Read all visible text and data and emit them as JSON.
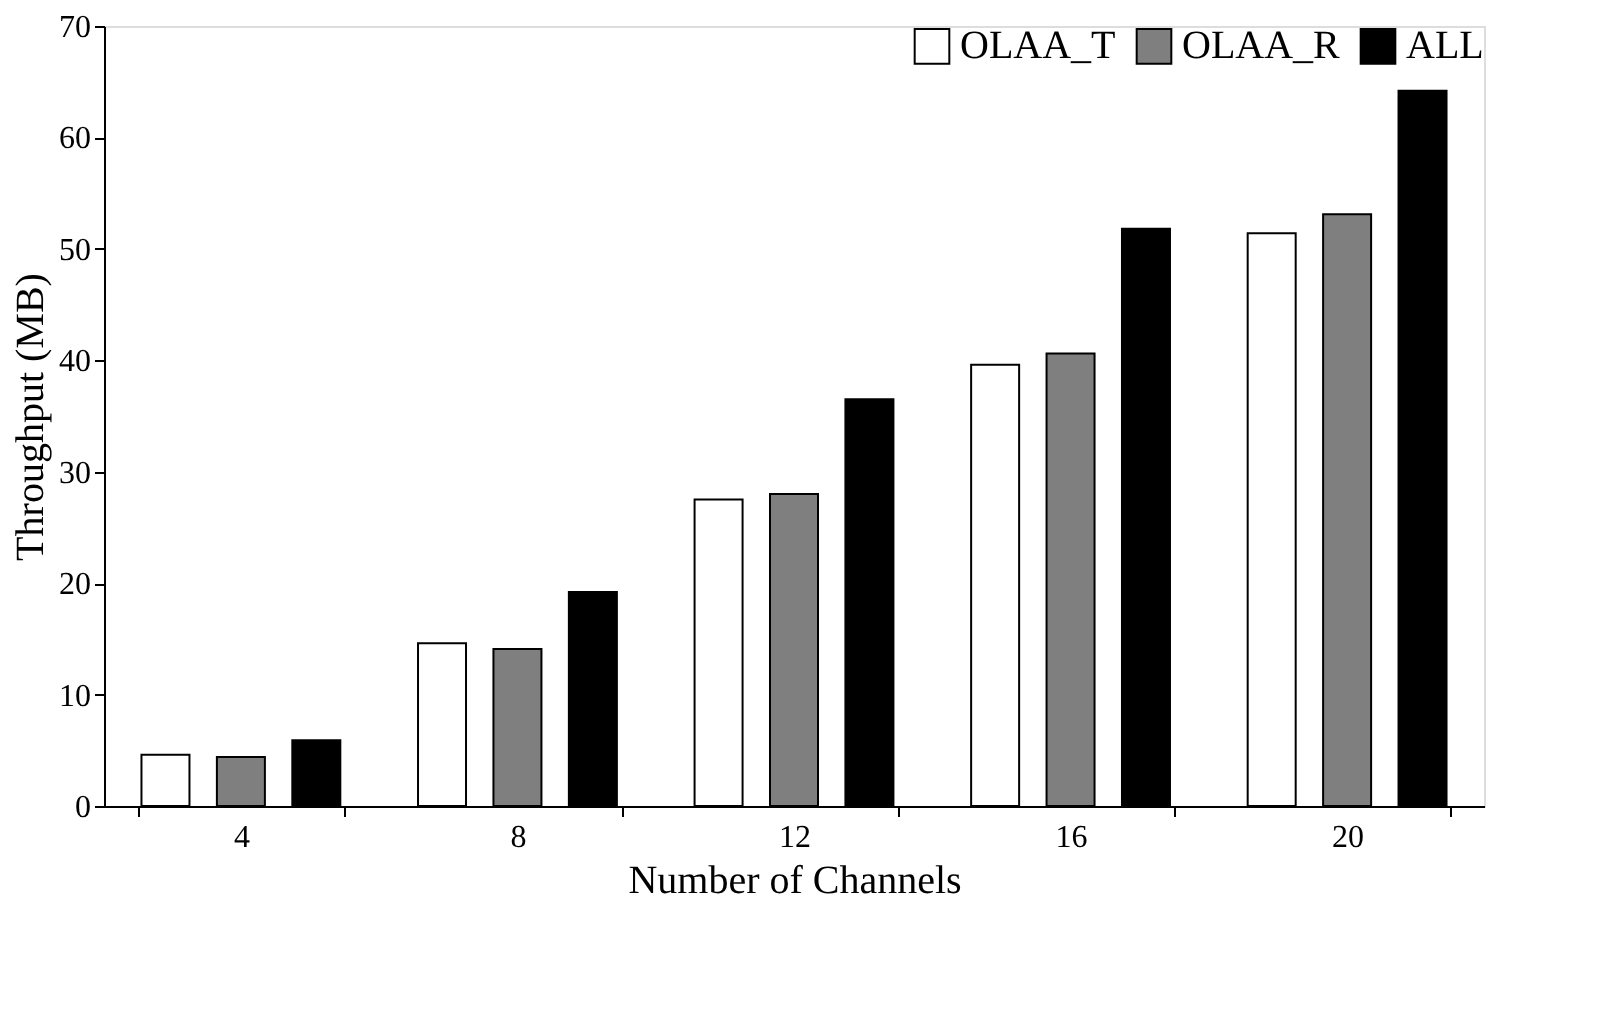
{
  "chart_data": {
    "type": "bar",
    "xlabel": "Number of Channels",
    "ylabel": "Throughput (MB)",
    "categories": [
      "4",
      "8",
      "12",
      "16",
      "20"
    ],
    "series": [
      {
        "name": "OLAA_T",
        "color": "#ffffff",
        "values": [
          4.6,
          14.6,
          27.5,
          39.6,
          51.4
        ]
      },
      {
        "name": "OLAA_R",
        "color": "#7f7f7f",
        "values": [
          4.4,
          14.1,
          28.0,
          40.6,
          53.1
        ]
      },
      {
        "name": "ALL",
        "color": "#000000",
        "values": [
          5.9,
          19.2,
          36.5,
          51.8,
          64.2
        ]
      }
    ],
    "ylim": [
      0,
      70
    ],
    "yticks": [
      0,
      10,
      20,
      30,
      40,
      50,
      60,
      70
    ],
    "grid": false,
    "legend": "top right"
  }
}
